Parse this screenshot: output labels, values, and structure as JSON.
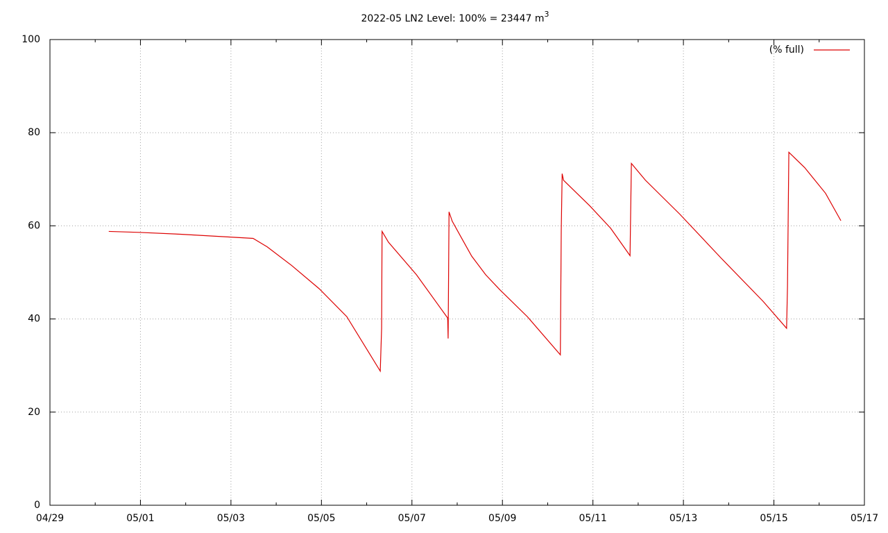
{
  "chart_data": {
    "type": "line",
    "title": "2022-05 LN2 Level: 100% = 23447 m",
    "title_superscript": "3",
    "series": [
      {
        "name": "(% full)",
        "color": "#dd0000",
        "x": [
          1.3,
          1.96,
          2.88,
          3.96,
          4.49,
          4.8,
          5.34,
          5.95,
          6.56,
          7.3,
          7.33,
          7.34,
          7.48,
          8.1,
          8.79,
          8.8,
          8.82,
          8.89,
          9.09,
          9.32,
          9.63,
          9.94,
          10.55,
          11.28,
          11.3,
          11.32,
          11.35,
          11.93,
          12.39,
          12.82,
          12.85,
          13.16,
          13.92,
          14.84,
          15.76,
          16.28,
          16.3,
          16.33,
          16.68,
          17.14,
          17.48
        ],
        "values": [
          58.8,
          58.6,
          58.2,
          57.6,
          57.3,
          55.5,
          51.5,
          46.5,
          40.5,
          28.8,
          38,
          58.8,
          56.5,
          49.5,
          40.2,
          35.8,
          63.0,
          61.0,
          57.5,
          53.5,
          49.5,
          46.3,
          40.5,
          32.3,
          59,
          71.2,
          69.8,
          64.3,
          59.5,
          53.6,
          73.4,
          69.8,
          62.5,
          53.0,
          43.8,
          38.0,
          47,
          75.8,
          72.5,
          67,
          61.1
        ]
      }
    ],
    "xlim": [
      0,
      18
    ],
    "xticks": [
      {
        "value": 0,
        "label": "04/29"
      },
      {
        "value": 2,
        "label": "05/01"
      },
      {
        "value": 4,
        "label": "05/03"
      },
      {
        "value": 6,
        "label": "05/05"
      },
      {
        "value": 8,
        "label": "05/07"
      },
      {
        "value": 10,
        "label": "05/09"
      },
      {
        "value": 12,
        "label": "05/11"
      },
      {
        "value": 14,
        "label": "05/13"
      },
      {
        "value": 16,
        "label": "05/15"
      },
      {
        "value": 18,
        "label": "05/17"
      }
    ],
    "xminorticks": [
      1,
      3,
      5,
      7,
      9,
      11,
      13,
      15,
      17
    ],
    "ylim": [
      0,
      100
    ],
    "yticks": [
      0,
      20,
      40,
      60,
      80,
      100
    ],
    "grid": true,
    "legend": "top-right"
  }
}
